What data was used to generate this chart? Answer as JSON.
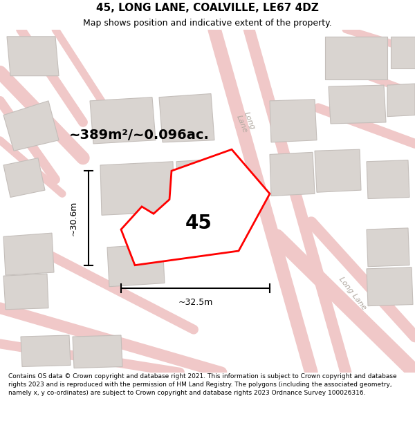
{
  "title": "45, LONG LANE, COALVILLE, LE67 4DZ",
  "subtitle": "Map shows position and indicative extent of the property.",
  "footer": "Contains OS data © Crown copyright and database right 2021. This information is subject to Crown copyright and database rights 2023 and is reproduced with the permission of HM Land Registry. The polygons (including the associated geometry, namely x, y co-ordinates) are subject to Crown copyright and database rights 2023 Ordnance Survey 100026316.",
  "area_label": "~389m²/~0.096ac.",
  "property_number": "45",
  "dim_width": "~32.5m",
  "dim_height": "~30.6m",
  "map_bg": "#f2eeeb",
  "plot_color": "#ff0000",
  "plot_fill": "#ffffff",
  "building_color": "#d9d4d0",
  "road_color": "#f0c8c8",
  "road_edge_color": "#e8a0a0",
  "street_color": "#b0a8a0",
  "figsize": [
    6.0,
    6.25
  ],
  "dpi": 100,
  "title_fontsize": 11,
  "subtitle_fontsize": 9,
  "footer_fontsize": 6.5,
  "area_fontsize": 14,
  "number_fontsize": 20,
  "dim_fontsize": 9
}
